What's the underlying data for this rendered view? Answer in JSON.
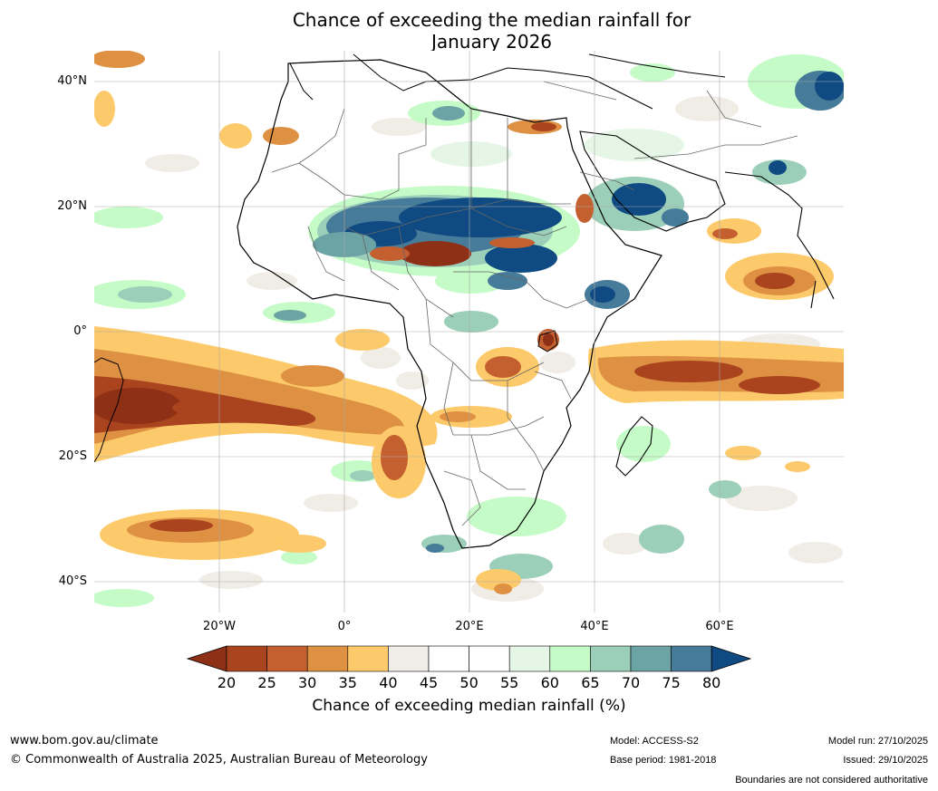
{
  "title": {
    "line1": "Chance of exceeding the median rainfall for",
    "line2": "January 2026"
  },
  "latitude_labels": [
    "40°N",
    "20°N",
    "0°",
    "20°S",
    "40°S"
  ],
  "longitude_labels": [
    "20°W",
    "0°",
    "20°E",
    "40°E",
    "60°E"
  ],
  "colorbar": {
    "title": "Chance of exceeding median rainfall (%)",
    "ticks": [
      "20",
      "25",
      "30",
      "35",
      "40",
      "45",
      "50",
      "55",
      "60",
      "65",
      "70",
      "75",
      "80"
    ],
    "colors": [
      "#8e3016",
      "#a9441f",
      "#c4602f",
      "#df9143",
      "#fdca6b",
      "#f0ece6",
      "#ffffff",
      "#ffffff",
      "#e6f6e6",
      "#c5fbc7",
      "#9bcfb9",
      "#6ca3a5",
      "#467b99",
      "#0f4b82"
    ]
  },
  "footer": {
    "website": "www.bom.gov.au/climate",
    "copyright": "© Commonwealth of Australia 2025, Australian Bureau of Meteorology",
    "model": "Model: ACCESS-S2",
    "base_period": "Base period: 1981-2018",
    "model_run": "Model run: 27/10/2025",
    "issued": "Issued: 29/10/2025",
    "disclaimer": "Boundaries are not considered authoritative"
  }
}
